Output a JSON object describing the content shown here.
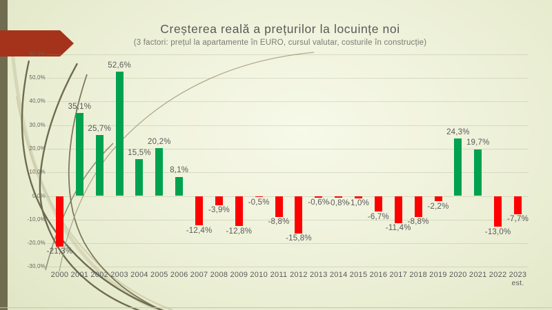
{
  "slide": {
    "title": "Creșterea reală a prețurilor la locuințe noi",
    "subtitle": "(3 factori: prețul la apartamente în EURO, cursul valutar, costurile în construcție)"
  },
  "colors": {
    "positive_bar": "#00A24F",
    "negative_bar": "#FE0000",
    "text": "#595959",
    "gridline": "#D9DCC6",
    "left_stripe": "#6F6C4F",
    "arrow_banner": "#A5331C",
    "swoosh_dark": "#6E6B4E",
    "swoosh_light": "#CBC9A9"
  },
  "chart_data": {
    "type": "bar",
    "title": "Creșterea reală a prețurilor la locuințe noi",
    "subtitle": "(3 factori: prețul la apartamente în EURO, cursul valutar, costurile în construcție)",
    "categories": [
      "2000",
      "2001",
      "2002",
      "2003",
      "2004",
      "2005",
      "2006",
      "2007",
      "2008",
      "2009",
      "2010",
      "2011",
      "2012",
      "2013",
      "2014",
      "2015",
      "2016",
      "2017",
      "2018",
      "2019",
      "2020",
      "2021",
      "2022",
      "2023"
    ],
    "last_category_note": "est.",
    "values": [
      -21.3,
      35.1,
      25.7,
      52.6,
      15.5,
      20.2,
      8.1,
      -12.4,
      -3.9,
      -12.8,
      -0.5,
      -8.8,
      -15.8,
      -0.6,
      -0.8,
      -1.0,
      -6.7,
      -11.4,
      -8.8,
      -2.2,
      24.3,
      19.7,
      -13.0,
      -7.7
    ],
    "value_labels": [
      "-21,3%",
      "35,1%",
      "25,7%",
      "52,6%",
      "15,5%",
      "20,2%",
      "8,1%",
      "-12,4%",
      "-3,9%",
      "-12,8%",
      "-0,5%",
      "-8,8%",
      "-15,8%",
      "-0,6%",
      "-0,8%",
      "-1,0%",
      "-6,7%",
      "-11,4%",
      "-8,8%",
      "-2,2%",
      "24,3%",
      "19,7%",
      "-13,0%",
      "-7,7%"
    ],
    "xlabel": "",
    "ylabel": "",
    "ylim": [
      -30,
      60
    ],
    "ytick_step": 10,
    "ytick_labels": [
      "60,0%",
      "50,0%",
      "40,0%",
      "30,0%",
      "20,0%",
      "10,0%",
      "0,0%",
      "-10,0%",
      "-20,0%",
      "-30,0%"
    ],
    "grid": true,
    "legend": false,
    "positive_color": "#00A24F",
    "negative_color": "#FE0000"
  }
}
